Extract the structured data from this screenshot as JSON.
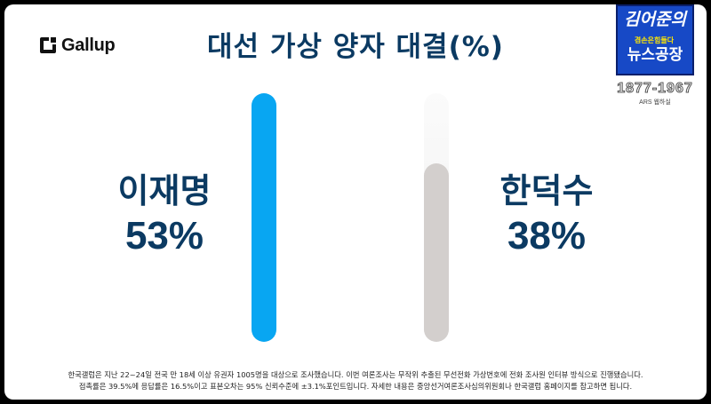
{
  "header": {
    "logo_text": "Gallup",
    "title": "대선 가상 양자 대결(%)"
  },
  "badge": {
    "line1": "김어준의",
    "tag": "겸손은힘들다",
    "line2": "",
    "line3": "뉴스공장",
    "years": "1877-1967",
    "ars": "ARS 웹하실"
  },
  "chart_data": {
    "type": "bar",
    "categories": [
      "이재명",
      "한덕수"
    ],
    "values": [
      53,
      38
    ],
    "value_labels": [
      "53%",
      "38%"
    ],
    "title": "대선 가상 양자 대결(%)",
    "ylim": [
      0,
      100
    ],
    "colors": [
      "#08a6f2",
      "#d3cfcd"
    ]
  },
  "footnote": {
    "line1": "한국갤럽은 지난 22~24일 전국 만 18세 이상 유권자 1005명을 대상으로 조사했습니다. 이번 여론조사는 무작위 추출된 무선전화 가상번호에 전화 조사원 인터뷰 방식으로 진행됐습니다.",
    "line2": "접촉률은 39.5%에 응답률은 16.5%이고 표본오차는 95% 신뢰수준에 ±3.1%포인트입니다. 자세한 내용은 중앙선거여론조사심의위원회나 한국갤럽 홈페이지를 참고하면 됩니다."
  }
}
